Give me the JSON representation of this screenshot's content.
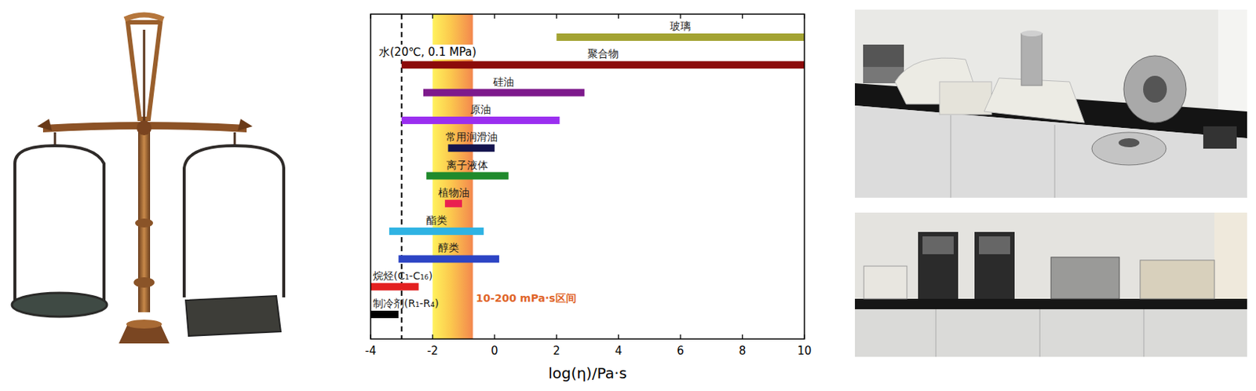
{
  "chart_data": {
    "type": "range_bar",
    "orientation": "horizontal",
    "xlabel": "log(η)/Pa·s",
    "categories": [
      "玻璃",
      "聚合物",
      "硅油",
      "原油",
      "常用润滑油",
      "离子液体",
      "植物油",
      "酯类",
      "醇类",
      "烷烃(C₁-C₁₆)",
      "制冷剂(R₁-R₄)"
    ],
    "values": [
      [
        2,
        10
      ],
      [
        -3,
        10
      ],
      [
        -2.3,
        2.9
      ],
      [
        -3,
        2.1
      ],
      [
        -1.5,
        0
      ],
      [
        -2.2,
        0.45
      ],
      [
        -1.6,
        -1.05
      ],
      [
        -3.4,
        -0.35
      ],
      [
        -3.1,
        0.15
      ],
      [
        -4,
        -2.45
      ],
      [
        -4,
        -3.1
      ]
    ],
    "colors": [
      "#a3a332",
      "#8b0a0a",
      "#7d1a8c",
      "#9a2ef0",
      "#14144e",
      "#1f8a2c",
      "#ea2050",
      "#2fb3e3",
      "#2c44c4",
      "#e32020",
      "#000000"
    ],
    "xlim": [
      -4,
      10
    ],
    "xticks": [
      -4,
      -2,
      0,
      2,
      4,
      6,
      8,
      10
    ],
    "tick_labels": "x",
    "reference_line": {
      "label": "水(20℃, 0.1 MPa)",
      "x": -3
    },
    "band": {
      "label": "10-200 mPa·s区间",
      "range": [
        -2,
        -0.7
      ]
    }
  }
}
